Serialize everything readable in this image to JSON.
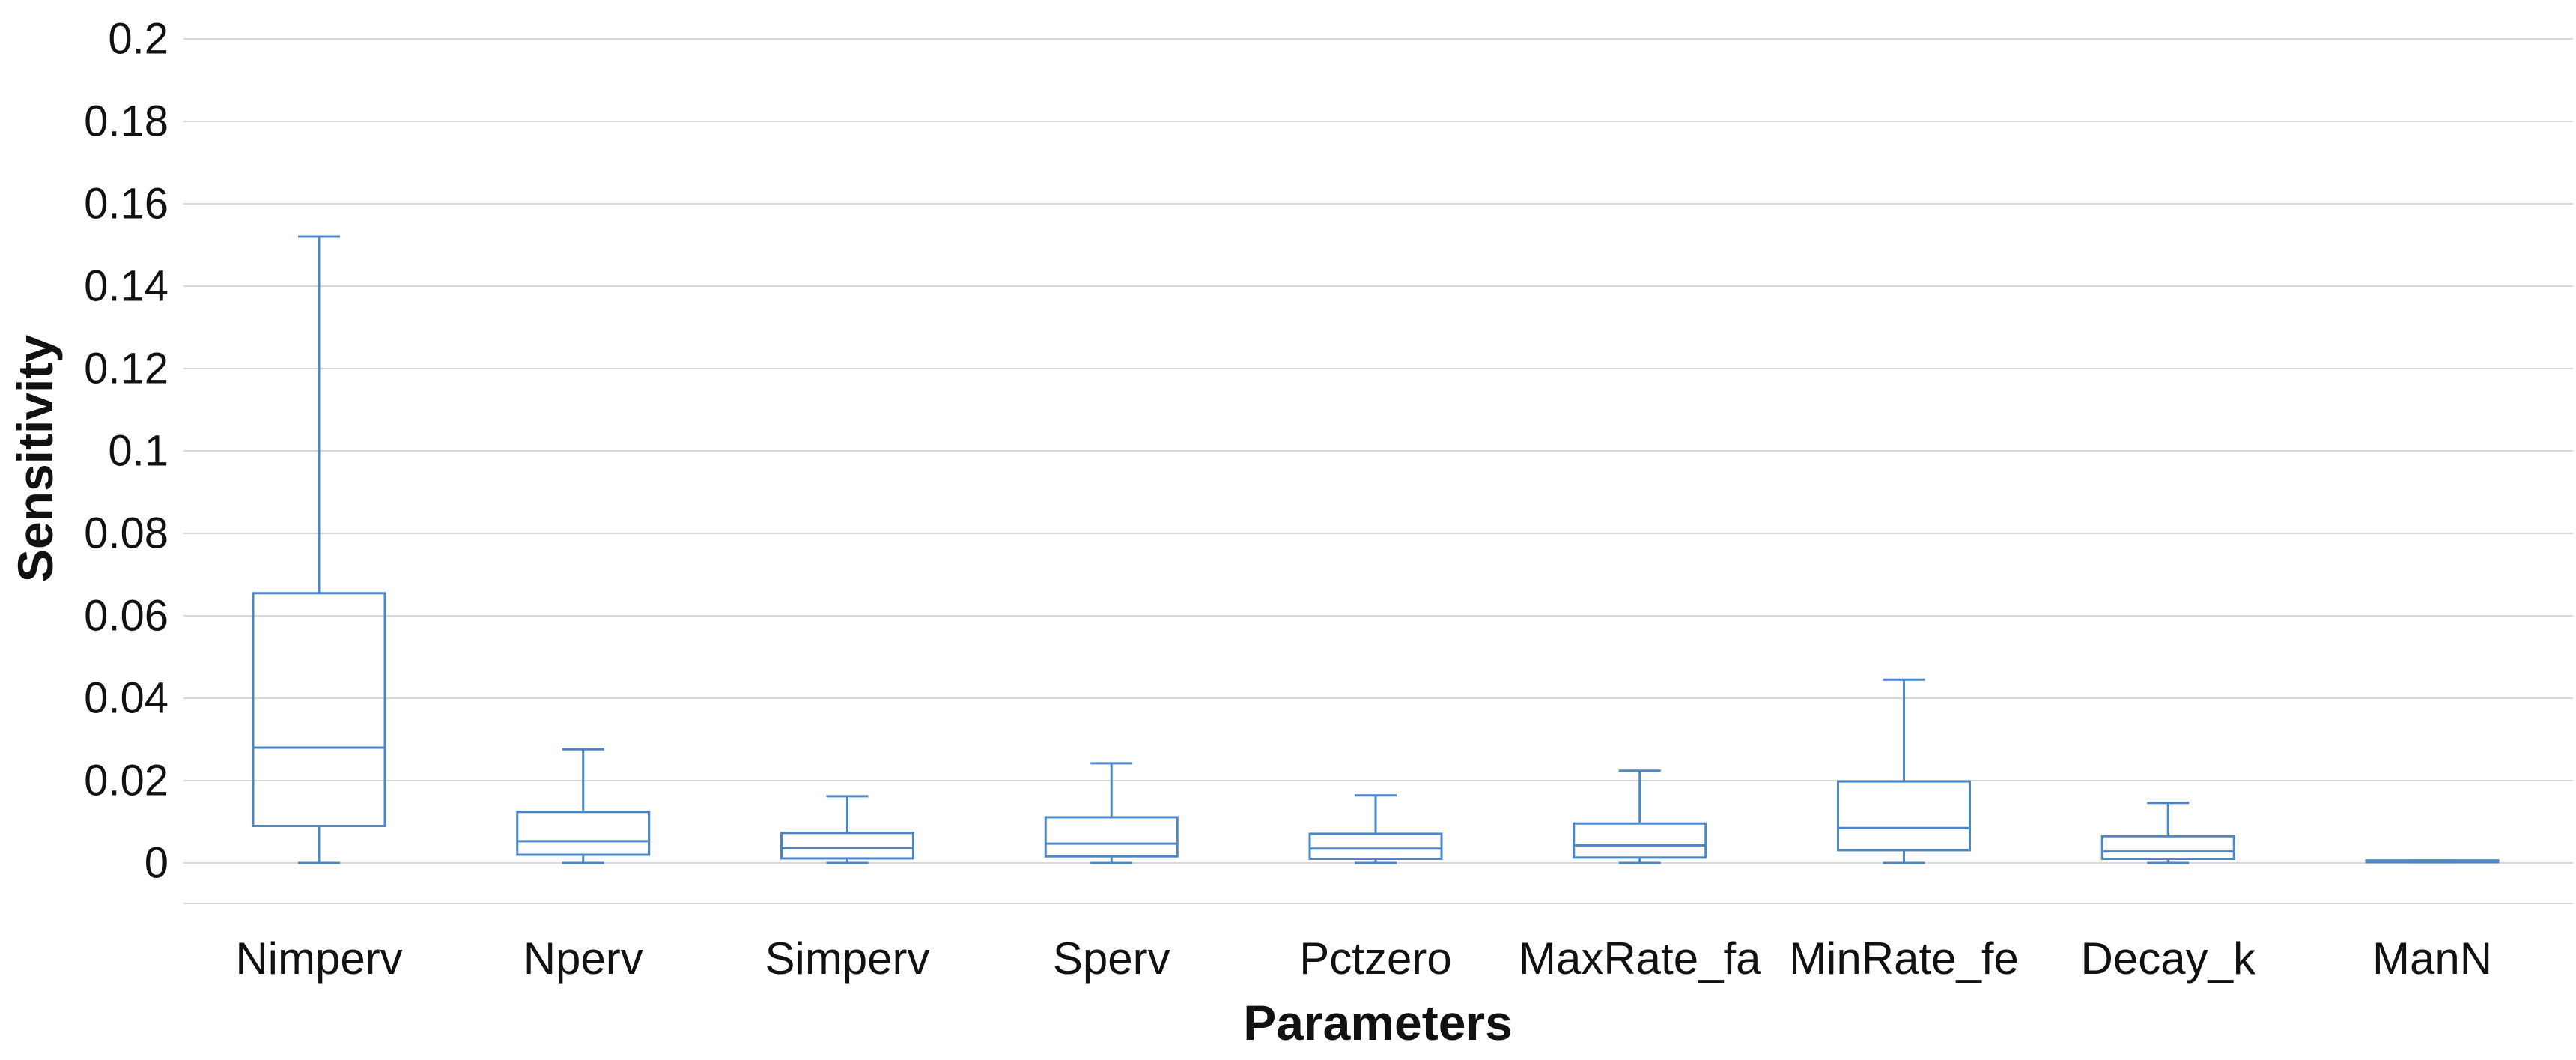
{
  "page": {
    "background": "#ffffff"
  },
  "chart_data": {
    "type": "boxplot",
    "title": "",
    "xlabel": "Parameters",
    "ylabel": "Sensitivity",
    "categories": [
      "Nimperv",
      "Nperv",
      "Simperv",
      "Sperv",
      "Pctzero",
      "MaxRate_fa",
      "MinRate_fe",
      "Decay_k",
      "ManN"
    ],
    "series": [
      {
        "name": "Nimperv",
        "min": 0.0,
        "q1": 0.009,
        "median": 0.028,
        "q3": 0.0655,
        "max": 0.152
      },
      {
        "name": "Nperv",
        "min": 0.0,
        "q1": 0.002,
        "median": 0.0053,
        "q3": 0.0124,
        "max": 0.0276
      },
      {
        "name": "Simperv",
        "min": 0.0,
        "q1": 0.0011,
        "median": 0.0036,
        "q3": 0.0073,
        "max": 0.0162
      },
      {
        "name": "Sperv",
        "min": 0.0,
        "q1": 0.0016,
        "median": 0.0047,
        "q3": 0.0111,
        "max": 0.0242
      },
      {
        "name": "Pctzero",
        "min": 0.0,
        "q1": 0.001,
        "median": 0.0035,
        "q3": 0.0071,
        "max": 0.0164
      },
      {
        "name": "MaxRate_fa",
        "min": 0.0,
        "q1": 0.0013,
        "median": 0.0043,
        "q3": 0.0096,
        "max": 0.0224
      },
      {
        "name": "MinRate_fe",
        "min": 0.0,
        "q1": 0.0031,
        "median": 0.0085,
        "q3": 0.0198,
        "max": 0.0445
      },
      {
        "name": "Decay_k",
        "min": 0.0,
        "q1": 0.001,
        "median": 0.0028,
        "q3": 0.0065,
        "max": 0.0146
      },
      {
        "name": "ManN",
        "min": 0.0002,
        "q1": 0.0002,
        "median": 0.0004,
        "q3": 0.0006,
        "max": 0.0006
      }
    ],
    "ylim": [
      -0.01,
      0.2
    ],
    "yticks": [
      {
        "value": 0.2,
        "label": "0.2"
      },
      {
        "value": 0.18,
        "label": "0.18"
      },
      {
        "value": 0.16,
        "label": "0.16"
      },
      {
        "value": 0.14,
        "label": "0.14"
      },
      {
        "value": 0.12,
        "label": "0.12"
      },
      {
        "value": 0.1,
        "label": "0.1"
      },
      {
        "value": 0.08,
        "label": "0.08"
      },
      {
        "value": 0.06,
        "label": "0.06"
      },
      {
        "value": 0.04,
        "label": "0.04"
      },
      {
        "value": 0.02,
        "label": "0.02"
      },
      {
        "value": 0.0,
        "label": "0"
      }
    ],
    "grid": "horizontal",
    "legend": "none",
    "colors": {
      "box_stroke": "#4a86c8",
      "gridline": "#d9d9d9",
      "text": "#111111"
    }
  }
}
